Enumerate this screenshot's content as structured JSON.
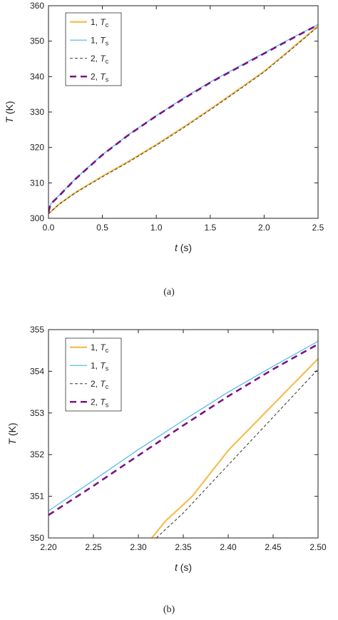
{
  "captions": {
    "a": "(a)",
    "b": "(b)"
  },
  "styles": {
    "colors": {
      "s1c": "#F5BE4E",
      "s1s": "#58BDEB",
      "s2c": "#333333",
      "s2s": "#7B1385"
    },
    "dash": {
      "s1c": "none",
      "s1s": "none",
      "s2c": "4 3",
      "s2s": "9 6"
    },
    "width": {
      "s1c": 2.2,
      "s1s": 1.3,
      "s2c": 1.0,
      "s2s": 2.6
    }
  },
  "chart_data": [
    {
      "id": "a",
      "type": "line",
      "xlabel": {
        "sym": "t",
        "unit": " (s)"
      },
      "ylabel": {
        "sym": "T",
        "unit": " (K)"
      },
      "xlim": [
        0,
        2.5
      ],
      "ylim": [
        300,
        360
      ],
      "xticks": [
        0,
        0.5,
        1.0,
        1.5,
        2.0,
        2.5
      ],
      "xtick_labels": [
        "0.0",
        "0.5",
        "1.0",
        "1.5",
        "2.0",
        "2.5"
      ],
      "yticks": [
        300,
        310,
        320,
        330,
        340,
        350,
        360
      ],
      "ytick_labels": [
        "300",
        "310",
        "320",
        "330",
        "340",
        "350",
        "360"
      ],
      "legend": "top-left",
      "series": [
        {
          "key": "s1c",
          "name": "1, ",
          "sym": "T",
          "sub": "c",
          "x": [
            0,
            0.1,
            0.25,
            0.5,
            0.75,
            1.0,
            1.25,
            1.5,
            1.75,
            2.0,
            2.25,
            2.5
          ],
          "y": [
            301.3,
            304.0,
            307.3,
            311.9,
            316.2,
            320.8,
            325.7,
            330.8,
            336.1,
            341.5,
            347.8,
            354.3
          ]
        },
        {
          "key": "s1s",
          "name": "1, ",
          "sym": "T",
          "sub": "s",
          "x": [
            0,
            0.02,
            0.1,
            0.25,
            0.5,
            0.75,
            1.0,
            1.25,
            1.5,
            1.75,
            2.0,
            2.25,
            2.5
          ],
          "y": [
            301.8,
            304.0,
            306.5,
            311.2,
            318.0,
            323.8,
            329.0,
            333.9,
            338.5,
            342.6,
            346.7,
            350.8,
            354.7
          ]
        },
        {
          "key": "s2c",
          "name": "2, ",
          "sym": "T",
          "sub": "c",
          "x": [
            0,
            0.1,
            0.25,
            0.5,
            0.75,
            1.0,
            1.25,
            1.5,
            1.75,
            2.0,
            2.25,
            2.5
          ],
          "y": [
            301.3,
            304.0,
            307.2,
            311.7,
            316.0,
            320.6,
            325.5,
            330.6,
            335.9,
            341.3,
            347.6,
            354.1
          ]
        },
        {
          "key": "s2s",
          "name": "2, ",
          "sym": "T",
          "sub": "s",
          "x": [
            0,
            0.02,
            0.1,
            0.25,
            0.5,
            0.75,
            1.0,
            1.25,
            1.5,
            1.75,
            2.0,
            2.25,
            2.5
          ],
          "y": [
            301.8,
            304.0,
            306.4,
            311.1,
            317.9,
            323.7,
            328.9,
            333.7,
            338.3,
            342.4,
            346.5,
            350.6,
            354.6
          ]
        }
      ]
    },
    {
      "id": "b",
      "type": "line",
      "xlabel": {
        "sym": "t",
        "unit": " (s)"
      },
      "ylabel": {
        "sym": "T",
        "unit": " (K)"
      },
      "xlim": [
        2.2,
        2.5
      ],
      "ylim": [
        350,
        355
      ],
      "xticks": [
        2.2,
        2.25,
        2.3,
        2.35,
        2.4,
        2.45,
        2.5
      ],
      "xtick_labels": [
        "2.20",
        "2.25",
        "2.30",
        "2.35",
        "2.40",
        "2.45",
        "2.50"
      ],
      "yticks": [
        350,
        351,
        352,
        353,
        354,
        355
      ],
      "ytick_labels": [
        "350",
        "351",
        "352",
        "353",
        "354",
        "355"
      ],
      "legend": "top-left",
      "series": [
        {
          "key": "s1c",
          "name": "1, ",
          "sym": "T",
          "sub": "c",
          "x": [
            2.315,
            2.33,
            2.35,
            2.36,
            2.4,
            2.45,
            2.5
          ],
          "y": [
            350.0,
            350.4,
            350.8,
            351.0,
            352.1,
            353.2,
            354.3
          ]
        },
        {
          "key": "s1s",
          "name": "1, ",
          "sym": "T",
          "sub": "s",
          "x": [
            2.2,
            2.25,
            2.3,
            2.35,
            2.4,
            2.45,
            2.5
          ],
          "y": [
            350.65,
            351.38,
            352.12,
            352.82,
            353.5,
            354.12,
            354.72
          ]
        },
        {
          "key": "s2c",
          "name": "2, ",
          "sym": "T",
          "sub": "c",
          "x": [
            2.32,
            2.35,
            2.4,
            2.45,
            2.5
          ],
          "y": [
            350.0,
            350.6,
            351.75,
            352.9,
            354.05
          ]
        },
        {
          "key": "s2s",
          "name": "2, ",
          "sym": "T",
          "sub": "s",
          "x": [
            2.2,
            2.25,
            2.3,
            2.35,
            2.4,
            2.45,
            2.5
          ],
          "y": [
            350.55,
            351.25,
            351.98,
            352.7,
            353.4,
            354.05,
            354.65
          ]
        }
      ]
    }
  ]
}
